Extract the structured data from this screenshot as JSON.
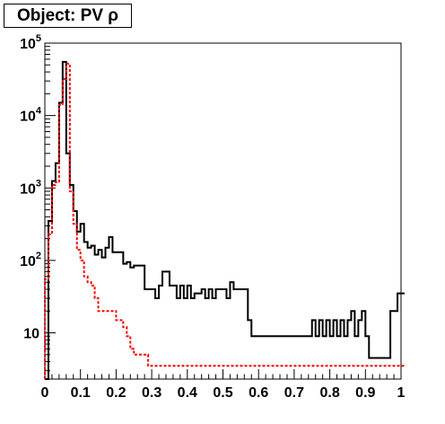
{
  "title": "Object: PV ρ",
  "chart_data": {
    "type": "histogram",
    "title": "Object: PV ρ",
    "xlabel": "",
    "ylabel": "",
    "xlim": [
      0,
      1
    ],
    "ylim": [
      2.3,
      100000
    ],
    "yscale": "log",
    "bin_width": 0.01,
    "x_ticks": [
      "0",
      "0.1",
      "0.2",
      "0.3",
      "0.4",
      "0.5",
      "0.6",
      "0.7",
      "0.8",
      "0.9",
      "1"
    ],
    "y_ticks": [
      {
        "value": 10,
        "base": "10",
        "exp": ""
      },
      {
        "value": 100,
        "base": "10",
        "exp": "2"
      },
      {
        "value": 1000,
        "base": "10",
        "exp": "3"
      },
      {
        "value": 10000,
        "base": "10",
        "exp": "4"
      },
      {
        "value": 100000,
        "base": "10",
        "exp": "5"
      }
    ],
    "grid": false,
    "legend": "none",
    "series": [
      {
        "color": "#000000",
        "style": "solid",
        "values": [
          0,
          350,
          1250,
          2200,
          15000,
          55000,
          3000,
          1100,
          480,
          250,
          320,
          180,
          150,
          160,
          120,
          140,
          110,
          150,
          210,
          130,
          130,
          130,
          90,
          95,
          80,
          85,
          85,
          85,
          40,
          40,
          40,
          30,
          45,
          70,
          70,
          45,
          45,
          30,
          45,
          30,
          45,
          30,
          35,
          35,
          40,
          30,
          40,
          30,
          40,
          40,
          40,
          30,
          50,
          40,
          40,
          40,
          40,
          15,
          9,
          9,
          9,
          9,
          9,
          9,
          9,
          9,
          9,
          9,
          9,
          9,
          9,
          9,
          9,
          9,
          9,
          15,
          9,
          15,
          9,
          15,
          9,
          15,
          9,
          15,
          9,
          15,
          20,
          9,
          15,
          20,
          9,
          4.5,
          4.5,
          4.5,
          4.5,
          4.5,
          4.5,
          20,
          20,
          35,
          35
        ]
      },
      {
        "color": "#ff0000",
        "style": "dashed",
        "values": [
          55,
          230,
          1100,
          1200,
          14000,
          32000,
          52000,
          900,
          320,
          140,
          100,
          60,
          50,
          45,
          30,
          20,
          20,
          20,
          20,
          20,
          15,
          15,
          12,
          9,
          6,
          5,
          5,
          5,
          5,
          3.5,
          3.5,
          3.5,
          3.5,
          3.5,
          3.5,
          3.5,
          3.5,
          3.5,
          3.5,
          3.5,
          3.5,
          3.5,
          3.5,
          3.5,
          3.5,
          3.5,
          3.5,
          3.5,
          3.5,
          3.5,
          3.5,
          3.5,
          3.5,
          3.5,
          3.5,
          3.5,
          3.5,
          3.5,
          3.5,
          3.5,
          3.5,
          3.5,
          3.5,
          3.5,
          3.5,
          3.5,
          3.5,
          3.5,
          3.5,
          3.5,
          3.5,
          3.5,
          3.5,
          3.5,
          3.5,
          3.5,
          3.5,
          3.5,
          3.5,
          3.5,
          3.5,
          3.5,
          3.5,
          3.5,
          3.5,
          3.5,
          3.5,
          3.5,
          3.5,
          3.5,
          3.5,
          3.5,
          3.5,
          3.5,
          3.5,
          3.5,
          3.5,
          3.5,
          3.5,
          3.5,
          3.5
        ]
      }
    ]
  }
}
